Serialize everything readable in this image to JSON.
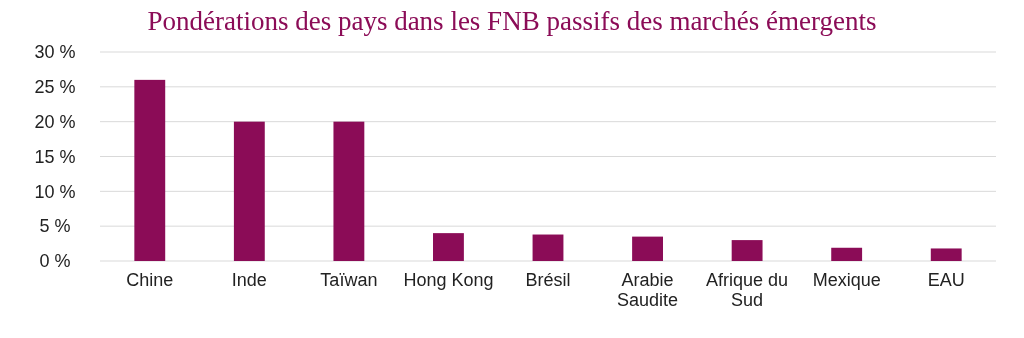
{
  "chart_data": {
    "type": "bar",
    "title": "Pondérations des pays dans les FNB passifs des marchés émergents",
    "categories": [
      "Chine",
      "Inde",
      "Taïwan",
      "Hong Kong",
      "Brésil",
      "Arabie Saudite",
      "Afrique du Sud",
      "Mexique",
      "EAU"
    ],
    "values": [
      26,
      20,
      20,
      4,
      3.8,
      3.5,
      3,
      1.9,
      1.8
    ],
    "color": "#8b0c57",
    "ylim": [
      0,
      30
    ],
    "yticks": [
      {
        "value": 0,
        "label": "0 %"
      },
      {
        "value": 5,
        "label": "5 %"
      },
      {
        "value": 10,
        "label": "10 %"
      },
      {
        "value": 15,
        "label": "15 %"
      },
      {
        "value": 20,
        "label": "20 %"
      },
      {
        "value": 25,
        "label": "25 %"
      },
      {
        "value": 30,
        "label": "30 %"
      }
    ],
    "grid": "y"
  }
}
